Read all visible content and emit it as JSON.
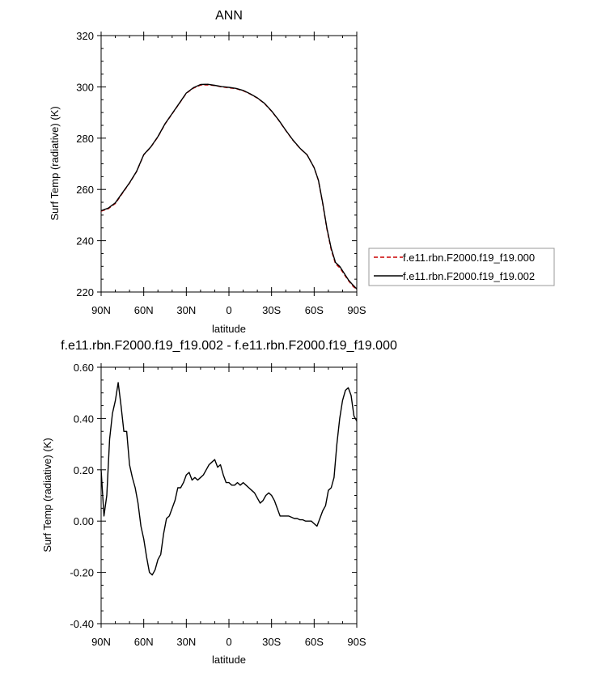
{
  "chart_data": [
    {
      "type": "line",
      "title": "ANN",
      "xlabel": "latitude",
      "ylabel": "Surf Temp (radiative) (K)",
      "xlim": [
        90,
        -90
      ],
      "ylim": [
        220,
        320
      ],
      "x_ticks": [
        {
          "value": 90,
          "label": "90N"
        },
        {
          "value": 60,
          "label": "60N"
        },
        {
          "value": 30,
          "label": "30N"
        },
        {
          "value": 0,
          "label": "0"
        },
        {
          "value": -30,
          "label": "30S"
        },
        {
          "value": -60,
          "label": "60S"
        },
        {
          "value": -90,
          "label": "90S"
        }
      ],
      "y_ticks": [
        {
          "value": 220,
          "label": "220"
        },
        {
          "value": 240,
          "label": "240"
        },
        {
          "value": 260,
          "label": "260"
        },
        {
          "value": 280,
          "label": "280"
        },
        {
          "value": 300,
          "label": "300"
        },
        {
          "value": 320,
          "label": "320"
        }
      ],
      "legend_position": "right",
      "grid": false,
      "x": [
        90,
        85,
        80,
        75,
        70,
        65,
        60,
        55,
        50,
        45,
        40,
        35,
        30,
        25,
        20,
        15,
        10,
        5,
        0,
        -5,
        -10,
        -15,
        -20,
        -25,
        -30,
        -35,
        -40,
        -45,
        -50,
        -55,
        -60,
        -63,
        -66,
        -69,
        -72,
        -75,
        -78,
        -81,
        -84,
        -87,
        -90
      ],
      "series": [
        {
          "name": "f.e11.rbn.F2000.f19_f19.000",
          "color": "#cc0000",
          "dash": "dashed",
          "values": [
            251.5,
            252.5,
            254.5,
            258.5,
            262.5,
            267,
            273.5,
            276.5,
            280.5,
            285.5,
            289.5,
            293.5,
            297.5,
            299.5,
            300.7,
            300.8,
            300.5,
            300.0,
            299.6,
            299.3,
            298.5,
            297.2,
            295.6,
            293.5,
            290.5,
            287.0,
            283.0,
            279.2,
            276.0,
            273.5,
            268.5,
            263.5,
            254.5,
            244.5,
            236.5,
            231.0,
            229.5,
            227.0,
            224.5,
            222.5,
            220.8
          ]
        },
        {
          "name": "f.e11.rbn.F2000.f19_f19.002",
          "color": "#000000",
          "dash": "solid",
          "values": [
            251.7,
            252.7,
            254.8,
            258.7,
            262.6,
            267.1,
            273.6,
            276.6,
            280.6,
            285.6,
            289.6,
            293.6,
            297.6,
            299.7,
            300.9,
            301.0,
            300.6,
            300.1,
            299.8,
            299.4,
            298.6,
            297.3,
            295.7,
            293.6,
            290.6,
            287.1,
            283.1,
            279.3,
            276.1,
            273.5,
            268.5,
            263.6,
            254.7,
            244.9,
            237.0,
            231.5,
            230.0,
            227.4,
            224.8,
            222.9,
            221.2
          ]
        }
      ]
    },
    {
      "type": "line",
      "title": "f.e11.rbn.F2000.f19_f19.002 - f.e11.rbn.F2000.f19_f19.000",
      "xlabel": "latitude",
      "ylabel": "Surf Temp (radiative) (K)",
      "xlim": [
        90,
        -90
      ],
      "ylim": [
        -0.4,
        0.6
      ],
      "x_ticks": [
        {
          "value": 90,
          "label": "90N"
        },
        {
          "value": 60,
          "label": "60N"
        },
        {
          "value": 30,
          "label": "30N"
        },
        {
          "value": 0,
          "label": "0"
        },
        {
          "value": -30,
          "label": "30S"
        },
        {
          "value": -60,
          "label": "60S"
        },
        {
          "value": -90,
          "label": "90S"
        }
      ],
      "y_ticks": [
        {
          "value": -0.4,
          "label": "-0.40"
        },
        {
          "value": -0.2,
          "label": "-0.20"
        },
        {
          "value": 0.0,
          "label": "0.00"
        },
        {
          "value": 0.2,
          "label": "0.20"
        },
        {
          "value": 0.4,
          "label": "0.40"
        },
        {
          "value": 0.6,
          "label": "0.60"
        }
      ],
      "grid": false,
      "x": [
        90,
        88,
        86,
        84,
        82,
        80,
        78,
        76,
        74,
        72,
        70,
        68,
        66,
        64,
        62,
        60,
        58,
        56,
        54,
        52,
        50,
        48,
        46,
        44,
        42,
        40,
        38,
        36,
        34,
        32,
        30,
        28,
        26,
        24,
        22,
        20,
        18,
        16,
        14,
        12,
        10,
        8,
        6,
        4,
        2,
        0,
        -2,
        -4,
        -6,
        -8,
        -10,
        -12,
        -14,
        -16,
        -18,
        -20,
        -22,
        -24,
        -26,
        -28,
        -30,
        -32,
        -34,
        -36,
        -38,
        -40,
        -42,
        -44,
        -46,
        -48,
        -50,
        -52,
        -54,
        -56,
        -58,
        -60,
        -62,
        -64,
        -66,
        -68,
        -70,
        -72,
        -74,
        -76,
        -78,
        -80,
        -82,
        -84,
        -86,
        -88,
        -90
      ],
      "series": [
        {
          "name": "",
          "color": "#000000",
          "dash": "solid",
          "values": [
            0.2,
            0.02,
            0.1,
            0.32,
            0.42,
            0.47,
            0.54,
            0.45,
            0.35,
            0.35,
            0.22,
            0.17,
            0.13,
            0.07,
            -0.02,
            -0.07,
            -0.14,
            -0.2,
            -0.21,
            -0.19,
            -0.15,
            -0.13,
            -0.05,
            0.01,
            0.02,
            0.05,
            0.08,
            0.13,
            0.13,
            0.15,
            0.18,
            0.19,
            0.16,
            0.17,
            0.16,
            0.17,
            0.18,
            0.2,
            0.22,
            0.23,
            0.24,
            0.21,
            0.22,
            0.18,
            0.15,
            0.15,
            0.14,
            0.14,
            0.15,
            0.14,
            0.15,
            0.14,
            0.13,
            0.12,
            0.11,
            0.09,
            0.07,
            0.08,
            0.1,
            0.11,
            0.1,
            0.08,
            0.05,
            0.02,
            0.02,
            0.02,
            0.02,
            0.015,
            0.01,
            0.01,
            0.005,
            0.005,
            0.0,
            0.0,
            0.0,
            -0.01,
            -0.02,
            0.01,
            0.04,
            0.06,
            0.12,
            0.13,
            0.17,
            0.3,
            0.4,
            0.47,
            0.51,
            0.52,
            0.49,
            0.41,
            0.39
          ]
        }
      ]
    }
  ]
}
